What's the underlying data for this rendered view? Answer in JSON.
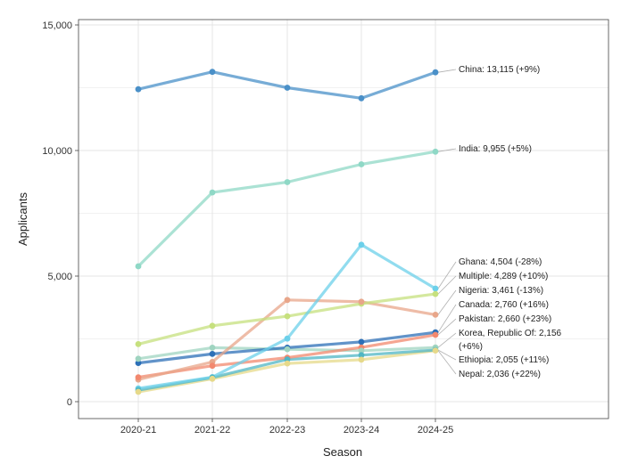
{
  "chart_data": {
    "type": "line",
    "xlabel": "Season",
    "ylabel": "Applicants",
    "ylim": [
      0,
      15000
    ],
    "yticks": [
      0,
      5000,
      10000,
      15000
    ],
    "ytick_labels": [
      "0",
      "5,000",
      "10,000",
      "15,000"
    ],
    "categories": [
      "2020-21",
      "2021-22",
      "2022-23",
      "2023-24",
      "2024-25"
    ],
    "grid": true,
    "legend": "end-labels",
    "series": [
      {
        "name": "China",
        "label": "China: 13,115 (+9%)",
        "color": "#4a90c8",
        "values": [
          12440,
          13130,
          12500,
          12080,
          13115
        ]
      },
      {
        "name": "India",
        "label": "India: 9,955 (+5%)",
        "color": "#8fd8c6",
        "values": [
          5390,
          8330,
          8740,
          9450,
          9955
        ]
      },
      {
        "name": "Ghana",
        "label": "Ghana: 4,504 (-28%)",
        "color": "#6cd0ea",
        "values": [
          530,
          980,
          2510,
          6250,
          4504
        ]
      },
      {
        "name": "Multiple",
        "label": "Multiple: 4,289 (+10%)",
        "color": "#c6e07e",
        "values": [
          2290,
          3020,
          3400,
          3900,
          4289
        ]
      },
      {
        "name": "Nigeria",
        "label": "Nigeria: 3,461 (-13%)",
        "color": "#e8a68a",
        "values": [
          880,
          1580,
          4050,
          3980,
          3461
        ]
      },
      {
        "name": "Canada",
        "label": "Canada: 2,760 (+16%)",
        "color": "#2c6fb7",
        "values": [
          1540,
          1900,
          2150,
          2380,
          2760
        ]
      },
      {
        "name": "Pakistan",
        "label": "Pakistan: 2,660 (+23%)",
        "color": "#f2886e",
        "values": [
          970,
          1430,
          1750,
          2160,
          2660
        ]
      },
      {
        "name": "Korea, Republic Of",
        "label": "Korea, Republic Of: 2,156",
        "label2": "(+6%)",
        "color": "#9fd4c0",
        "values": [
          1710,
          2150,
          2090,
          2030,
          2156
        ]
      },
      {
        "name": "Ethiopia",
        "label": "Ethiopia: 2,055 (+11%)",
        "color": "#4fb6c4",
        "values": [
          460,
          960,
          1680,
          1850,
          2055
        ]
      },
      {
        "name": "Nepal",
        "label": "Nepal: 2,036 (+22%)",
        "color": "#e6d98a",
        "values": [
          390,
          910,
          1520,
          1670,
          2036
        ]
      }
    ]
  }
}
